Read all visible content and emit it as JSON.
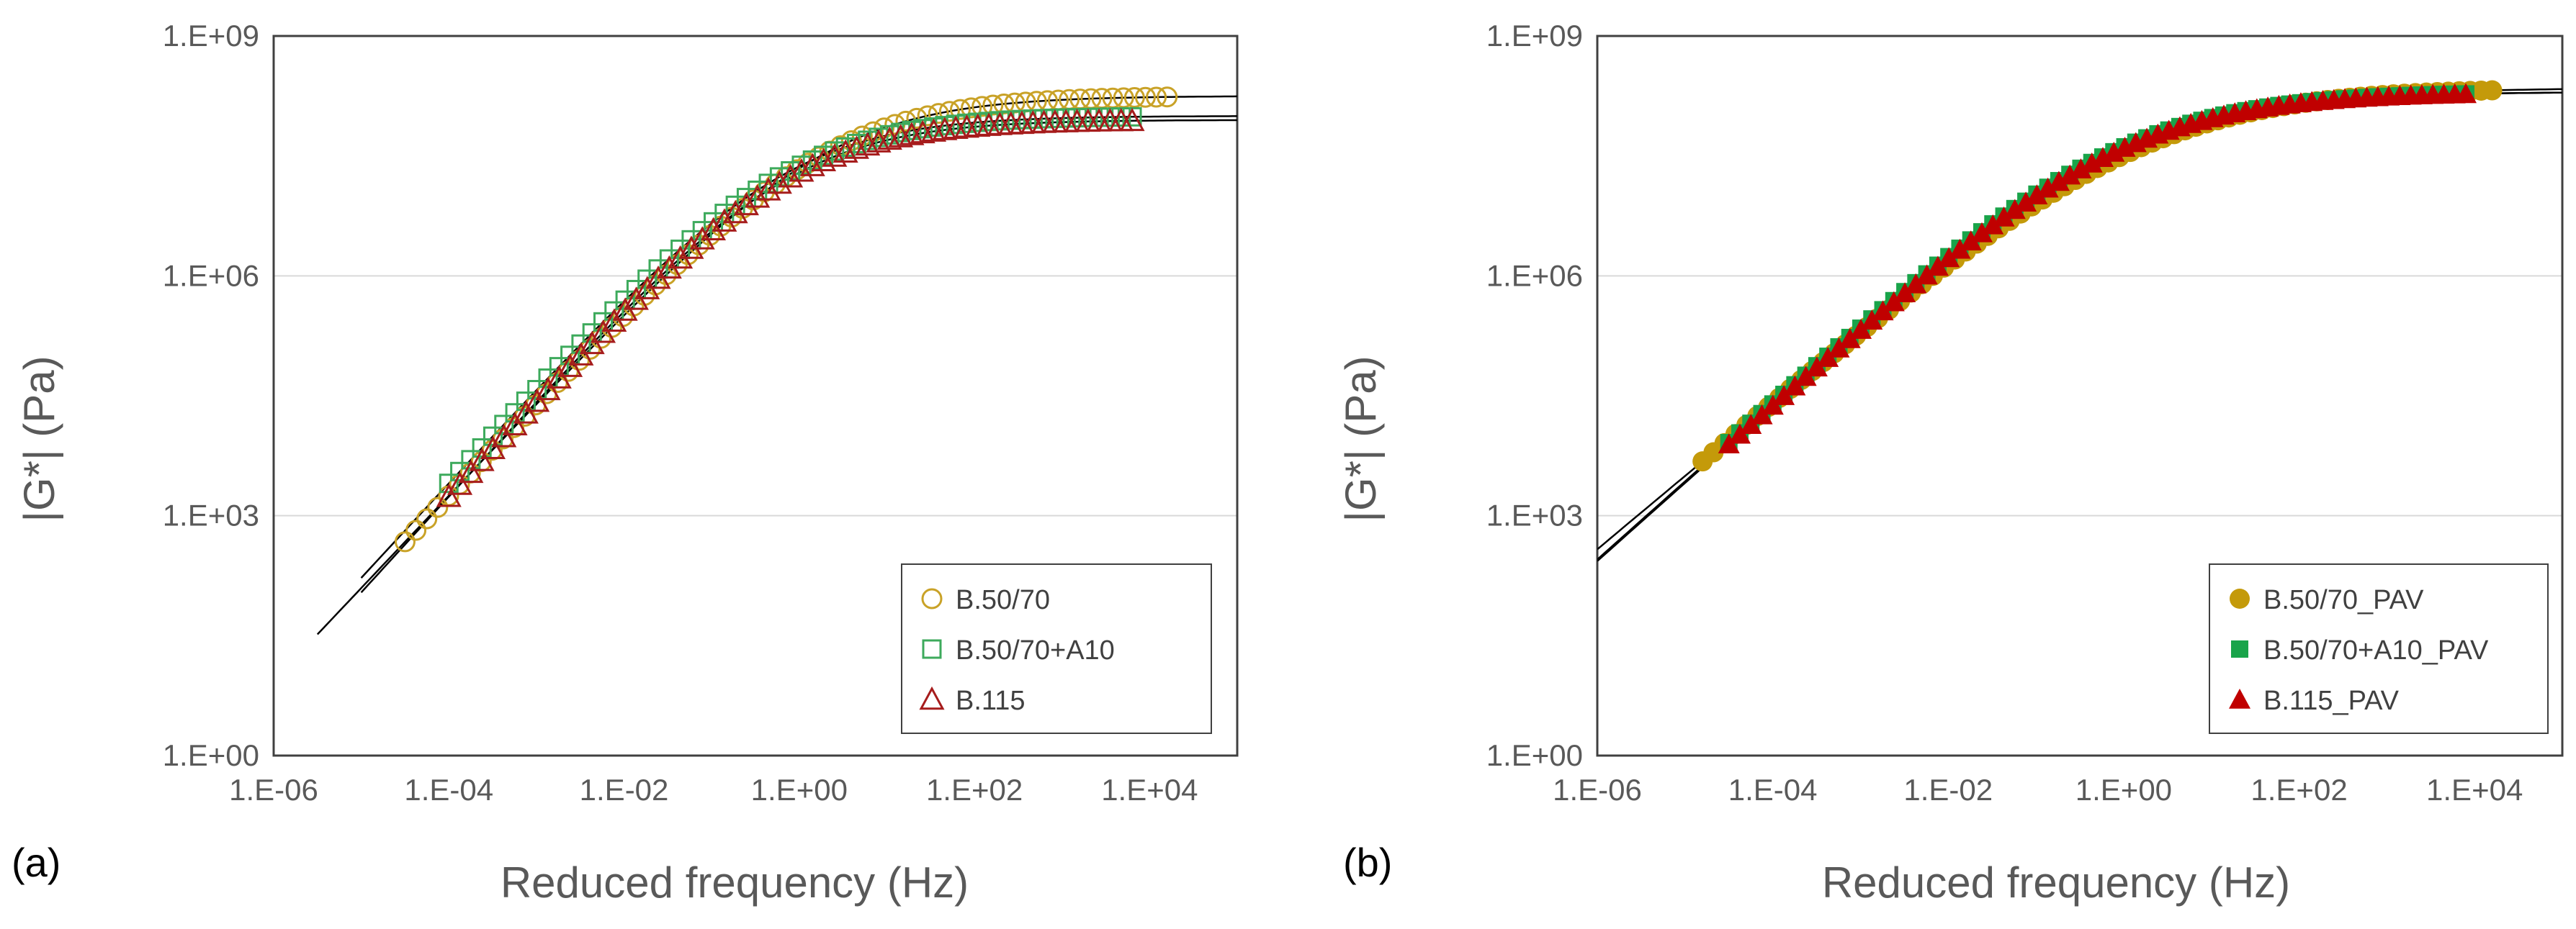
{
  "chart_data": [
    {
      "panel_label": "(a)",
      "type": "scatter",
      "xscale": "log",
      "yscale": "log",
      "xlabel": "Reduced frequency (Hz)",
      "ylabel": "|G*| (Pa)",
      "xlim": [
        1e-06,
        100000.0
      ],
      "ylim": [
        1,
        1000000000.0
      ],
      "x_ticks": [
        "1.E-06",
        "1.E-04",
        "1.E-02",
        "1.E+00",
        "1.E+02",
        "1.E+04"
      ],
      "y_ticks": [
        "1.E+00",
        "1.E+03",
        "1.E+06",
        "1.E+09"
      ],
      "grid": "horizontal",
      "legend_position": "bottom-right",
      "series": [
        {
          "name": "B.50/70",
          "marker": "circle-open",
          "color": "#C9A227",
          "x_log_range": [
            -4.5,
            4.2
          ],
          "fit": {
            "log_gc": 8.25,
            "k": 0.39,
            "b": 0.3,
            "x_log_range": [
              -5.5,
              5.0
            ]
          }
        },
        {
          "name": "B.50/70+A10",
          "marker": "square-open",
          "color": "#3DAA5C",
          "x_log_range": [
            -4.0,
            3.8
          ],
          "fit": {
            "log_gc": 8.0,
            "k": 0.4,
            "b": -0.15,
            "x_log_range": [
              -5.0,
              5.0
            ]
          }
        },
        {
          "name": "B.115",
          "marker": "triangle-open",
          "color": "#A61C1C",
          "x_log_range": [
            -4.0,
            3.8
          ],
          "fit": {
            "log_gc": 7.95,
            "k": 0.405,
            "b": -0.1,
            "x_log_range": [
              -5.0,
              5.0
            ]
          }
        }
      ]
    },
    {
      "panel_label": "(b)",
      "type": "scatter",
      "xscale": "log",
      "yscale": "log",
      "xlabel": "Reduced frequency (Hz)",
      "ylabel": "|G*| (Pa)",
      "xlim": [
        1e-06,
        100000.0
      ],
      "ylim": [
        1,
        1000000000.0
      ],
      "x_ticks": [
        "1.E-06",
        "1.E-04",
        "1.E-02",
        "1.E+00",
        "1.E+02",
        "1.E+04"
      ],
      "y_ticks": [
        "1.E+00",
        "1.E+03",
        "1.E+06",
        "1.E+09"
      ],
      "grid": "horizontal",
      "legend_position": "bottom-right",
      "series": [
        {
          "name": "B.50/70_PAV",
          "marker": "circle-filled",
          "color": "#C49A0A",
          "x_log_range": [
            -4.8,
            4.2
          ],
          "fit": {
            "log_gc": 8.35,
            "k": 0.31,
            "b": 0.25,
            "x_log_range": [
              -6.0,
              5.0
            ]
          }
        },
        {
          "name": "B.50/70+A10_PAV",
          "marker": "square-filled",
          "color": "#19A44A",
          "x_log_range": [
            -4.5,
            3.9
          ],
          "fit": {
            "log_gc": 8.3,
            "k": 0.33,
            "b": -0.05,
            "x_log_range": [
              -6.0,
              5.0
            ]
          }
        },
        {
          "name": "B.115_PAV",
          "marker": "triangle-filled",
          "color": "#C00000",
          "x_log_range": [
            -4.5,
            3.9
          ],
          "fit": {
            "log_gc": 8.3,
            "k": 0.33,
            "b": -0.03,
            "x_log_range": [
              -6.0,
              5.0
            ]
          }
        }
      ]
    }
  ]
}
